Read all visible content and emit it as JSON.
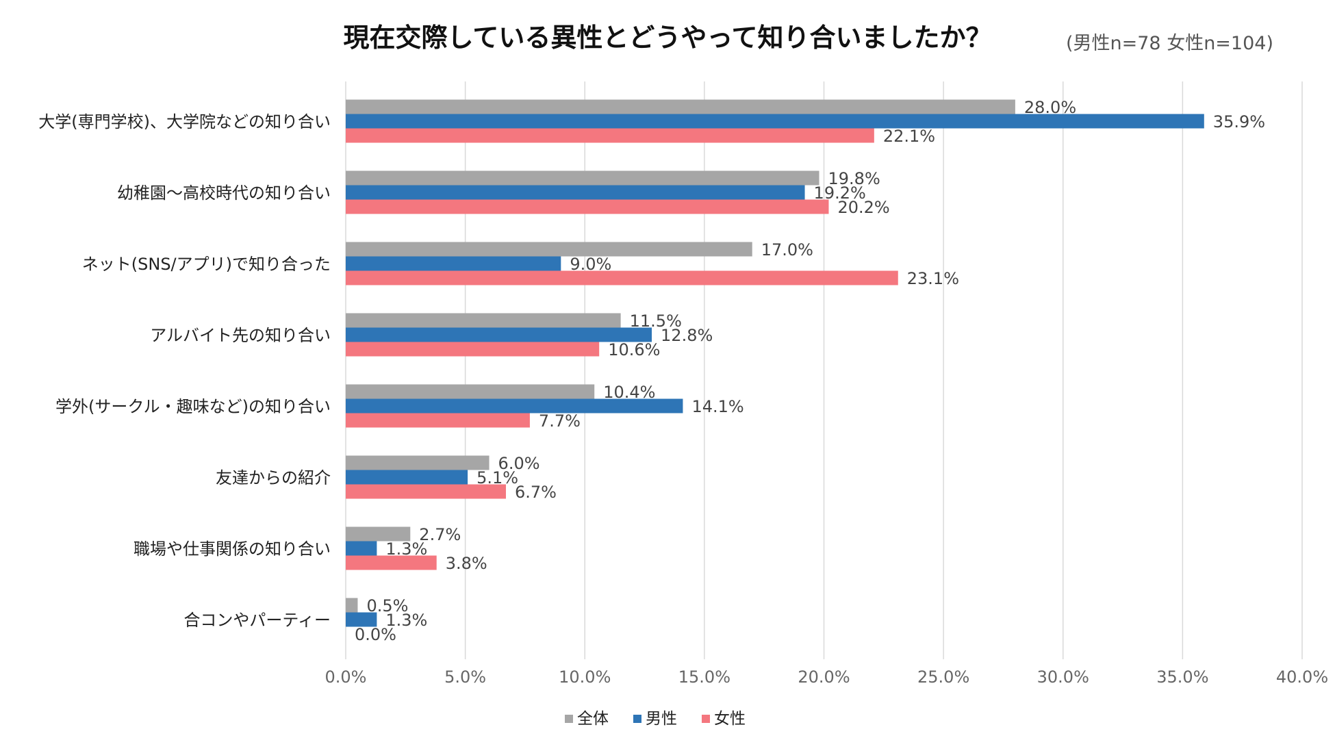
{
  "chart_data": {
    "type": "bar",
    "orientation": "horizontal",
    "title": "現在交際している異性とどうやって知り合いましたか？",
    "subtitle": "(男性n=78 女性n=104)",
    "categories": [
      "大学(専門学校)、大学院などの知り合い",
      "幼稚園～高校時代の知り合い",
      "ネット(SNS/アプリ)で知り合った",
      "アルバイト先の知り合い",
      "学外(サークル・趣味など)の知り合い",
      "友達からの紹介",
      "職場や仕事関係の知り合い",
      "合コンやパーティー"
    ],
    "series": [
      {
        "name": "全体",
        "color": "#a6a6a6",
        "values": [
          28.0,
          19.8,
          17.0,
          11.5,
          10.4,
          6.0,
          2.7,
          0.5
        ]
      },
      {
        "name": "男性",
        "color": "#2e75b6",
        "values": [
          35.9,
          19.2,
          9.0,
          12.8,
          14.1,
          5.1,
          1.3,
          1.3
        ]
      },
      {
        "name": "女性",
        "color": "#f4777f",
        "values": [
          22.1,
          20.2,
          23.1,
          10.6,
          7.7,
          6.7,
          3.8,
          0.0
        ]
      }
    ],
    "xlim": [
      0,
      40
    ],
    "xticks": [
      0,
      5,
      10,
      15,
      20,
      25,
      30,
      35,
      40
    ],
    "tick_format": "percent_1dp",
    "value_format": "percent_1dp",
    "grid": true,
    "legend_position": "bottom-center"
  }
}
